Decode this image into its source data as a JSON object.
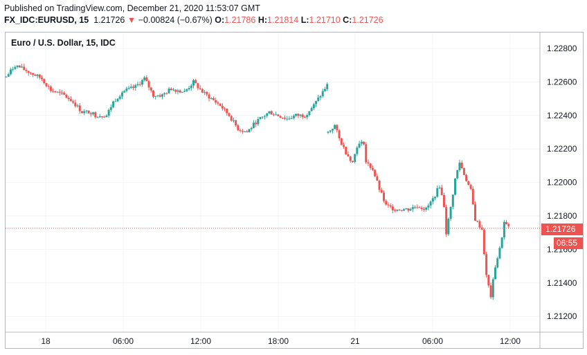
{
  "header": {
    "published": "Published on TradingView.com, December 21, 2020 11:53:07 GMT",
    "symbol": "FX_IDC:EURUSD, 15",
    "last": "1.21726",
    "change_arrow": "▼",
    "change": "−0.00824 (−0.67%)",
    "o_label": "O:",
    "o_value": "1.21786",
    "h_label": "H:",
    "h_value": "1.21814",
    "l_label": "L:",
    "l_value": "1.21710",
    "c_label": "C:",
    "c_value": "1.21726"
  },
  "legend_title": "Euro / U.S. Dollar, 15, IDC",
  "badges": {
    "price": "1.21726",
    "countdown": "06:55"
  },
  "colors": {
    "up": "#26a69a",
    "down": "#ef5350",
    "grid": "#f0f3fa",
    "axis_text": "#131722"
  },
  "chart_data": {
    "type": "candlestick",
    "title": "Euro / U.S. Dollar, 15, IDC",
    "ylim": [
      1.211,
      1.229
    ],
    "y_ticks": [
      "1.22800",
      "1.22600",
      "1.22400",
      "1.22200",
      "1.22000",
      "1.21800",
      "1.21600",
      "1.21400",
      "1.21200"
    ],
    "x_ticks": [
      "18",
      "06:00",
      "12:00",
      "18:00",
      "21",
      "06:00",
      "12:00"
    ],
    "last_price": 1.21726,
    "grid": true,
    "keypoints_session1": [
      [
        0,
        1.2263
      ],
      [
        4,
        1.227
      ],
      [
        10,
        1.2266
      ],
      [
        16,
        1.2262
      ],
      [
        20,
        1.2255
      ],
      [
        26,
        1.2252
      ],
      [
        30,
        1.2248
      ],
      [
        34,
        1.2242
      ],
      [
        38,
        1.2242
      ],
      [
        40,
        1.224
      ],
      [
        45,
        1.224
      ],
      [
        48,
        1.2248
      ],
      [
        52,
        1.2254
      ],
      [
        56,
        1.2256
      ],
      [
        58,
        1.2257
      ],
      [
        62,
        1.2262
      ],
      [
        66,
        1.2252
      ],
      [
        70,
        1.2252
      ],
      [
        74,
        1.2256
      ],
      [
        80,
        1.2254
      ],
      [
        84,
        1.226
      ],
      [
        88,
        1.2254
      ],
      [
        92,
        1.225
      ],
      [
        96,
        1.2246
      ],
      [
        100,
        1.224
      ],
      [
        104,
        1.2232
      ],
      [
        108,
        1.223
      ],
      [
        112,
        1.2236
      ],
      [
        116,
        1.224
      ],
      [
        118,
        1.2242
      ],
      [
        122,
        1.224
      ],
      [
        126,
        1.2238
      ],
      [
        130,
        1.224
      ],
      [
        134,
        1.224
      ],
      [
        138,
        1.2246
      ],
      [
        142,
        1.2254
      ],
      [
        144,
        1.2258
      ]
    ],
    "keypoints_session2": [
      [
        0,
        1.223
      ],
      [
        3,
        1.2234
      ],
      [
        5,
        1.2226
      ],
      [
        8,
        1.2218
      ],
      [
        11,
        1.2212
      ],
      [
        13,
        1.2222
      ],
      [
        16,
        1.2224
      ],
      [
        17,
        1.2212
      ],
      [
        20,
        1.2208
      ],
      [
        23,
        1.2196
      ],
      [
        26,
        1.2186
      ],
      [
        30,
        1.2184
      ],
      [
        36,
        1.2184
      ],
      [
        40,
        1.2186
      ],
      [
        44,
        1.2184
      ],
      [
        47,
        1.219
      ],
      [
        50,
        1.2198
      ],
      [
        52,
        1.2186
      ],
      [
        53,
        1.217
      ],
      [
        55,
        1.2185
      ],
      [
        57,
        1.2202
      ],
      [
        59,
        1.2212
      ],
      [
        61,
        1.2205
      ],
      [
        64,
        1.2195
      ],
      [
        66,
        1.2178
      ],
      [
        69,
        1.2172
      ],
      [
        71,
        1.2144
      ],
      [
        73,
        1.2132
      ],
      [
        75,
        1.215
      ],
      [
        77,
        1.216
      ],
      [
        79,
        1.2176
      ],
      [
        81,
        1.2173
      ]
    ]
  }
}
